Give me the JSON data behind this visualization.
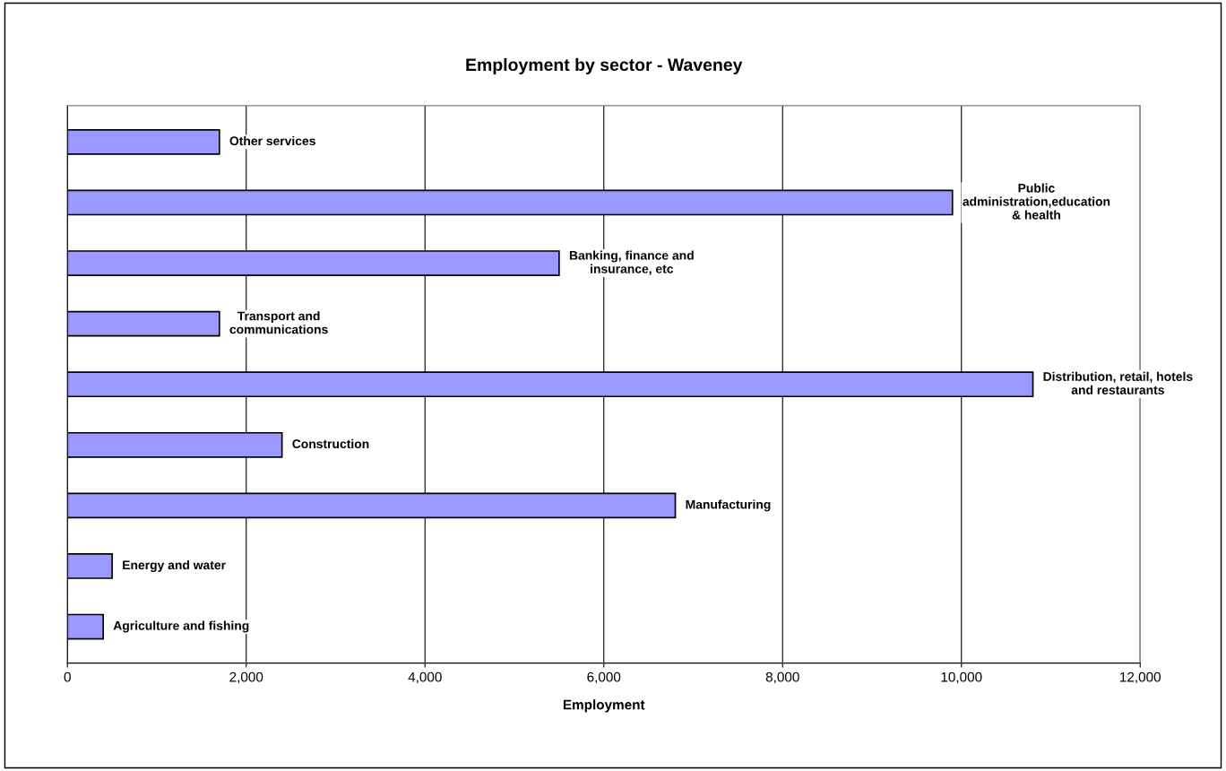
{
  "chart_data": {
    "type": "bar",
    "orientation": "horizontal",
    "title": "Employment by sector - Waveney",
    "xlabel": "Employment",
    "categories": [
      "Other services",
      "Public\nadministration,education\n& health",
      "Banking, finance and\ninsurance, etc",
      "Transport and\ncommunications",
      "Distribution, retail, hotels\nand restaurants",
      "Construction",
      "Manufacturing",
      "Energy and water",
      "Agriculture and fishing"
    ],
    "values": [
      1700,
      9900,
      5500,
      1700,
      10800,
      2400,
      6800,
      500,
      400
    ],
    "color": "#9999ff",
    "xlim": [
      0,
      12000
    ],
    "xticks": [
      0,
      {
        "value": 2000,
        "label": "2,000"
      },
      {
        "value": 4000,
        "label": "4,000"
      },
      {
        "value": 6000,
        "label": "6,000"
      },
      {
        "value": 8000,
        "label": "8,000"
      },
      {
        "value": 10000,
        "label": "10,000"
      },
      {
        "value": 12000,
        "label": "12,000"
      }
    ],
    "grid": "x",
    "tick_labels": "x"
  }
}
